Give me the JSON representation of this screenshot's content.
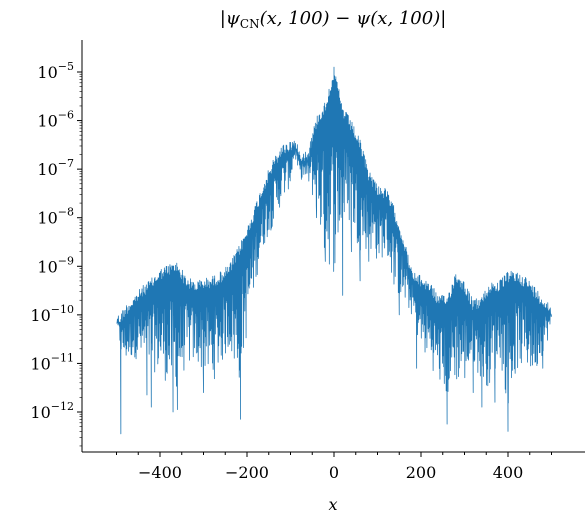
{
  "chart_data": {
    "type": "line",
    "title_parts": {
      "open": "|",
      "psi": "ψ",
      "sub": "CN",
      "args": "(x, 100) − ",
      "psi2": "ψ",
      "args2": "(x, 100)",
      "close": "|"
    },
    "xlabel": "x",
    "ylabel": "",
    "xlim": [
      -520,
      520
    ],
    "ylim_log10": [
      -12.75,
      -4.9
    ],
    "yscale": "log",
    "grid": false,
    "x_ticks": [
      -400,
      -200,
      0,
      200,
      400
    ],
    "x_tick_labels": [
      "−400",
      "−200",
      "0",
      "200",
      "400"
    ],
    "y_ticks_log10": [
      -5,
      -6,
      -7,
      -8,
      -9,
      -10,
      -11,
      -12
    ],
    "y_tick_labels": [
      {
        "base": "10",
        "exp": "−5"
      },
      {
        "base": "10",
        "exp": "−6"
      },
      {
        "base": "10",
        "exp": "−7"
      },
      {
        "base": "10",
        "exp": "−8"
      },
      {
        "base": "10",
        "exp": "−9"
      },
      {
        "base": "10",
        "exp": "−10"
      },
      {
        "base": "10",
        "exp": "−11"
      },
      {
        "base": "10",
        "exp": "−12"
      }
    ],
    "series": [
      {
        "color": "#1f77b4",
        "x": [
          -500,
          -490,
          -480,
          -460,
          -440,
          -420,
          -400,
          -380,
          -360,
          -340,
          -320,
          -300,
          -280,
          -260,
          -240,
          -220,
          -200,
          -180,
          -160,
          -140,
          -120,
          -100,
          -90,
          -80,
          -60,
          -40,
          -20,
          0,
          20,
          40,
          60,
          80,
          100,
          120,
          140,
          160,
          180,
          200,
          220,
          240,
          260,
          280,
          300,
          320,
          340,
          360,
          380,
          400,
          420,
          440,
          460,
          480,
          500
        ],
        "upper_log10": [
          -10.0,
          -9.95,
          -9.8,
          -9.6,
          -9.4,
          -9.25,
          -9.05,
          -8.95,
          -8.9,
          -9.2,
          -9.3,
          -9.25,
          -9.2,
          -9.1,
          -8.95,
          -8.6,
          -8.2,
          -7.7,
          -7.2,
          -6.8,
          -6.5,
          -6.4,
          -6.35,
          -6.6,
          -6.6,
          -5.9,
          -5.6,
          -4.9,
          -5.7,
          -6.0,
          -6.4,
          -7.0,
          -7.3,
          -7.4,
          -7.8,
          -8.4,
          -9.1,
          -9.2,
          -9.3,
          -9.6,
          -9.6,
          -9.1,
          -9.3,
          -9.7,
          -9.6,
          -9.3,
          -9.3,
          -9.1,
          -9.1,
          -9.2,
          -9.4,
          -9.6,
          -9.8
        ],
        "lower_log10": [
          -10.2,
          -11.0,
          -11.2,
          -11.1,
          -11.3,
          -11.5,
          -11.6,
          -11.9,
          -12.0,
          -11.4,
          -11.3,
          -11.5,
          -11.8,
          -11.4,
          -11.0,
          -12.0,
          -10.8,
          -9.6,
          -8.8,
          -8.4,
          -7.9,
          -7.5,
          -6.8,
          -7.3,
          -7.4,
          -8.2,
          -9.5,
          -9.9,
          -8.6,
          -8.5,
          -9.2,
          -8.9,
          -9.2,
          -9.0,
          -9.8,
          -10.0,
          -10.2,
          -11.0,
          -11.3,
          -11.7,
          -12.1,
          -11.8,
          -11.8,
          -11.2,
          -11.7,
          -11.9,
          -11.1,
          -12.4,
          -11.5,
          -11.4,
          -11.6,
          -11.0,
          -10.4
        ],
        "spikes": [
          {
            "x": -490,
            "log10": -12.45
          },
          {
            "x": -430,
            "log10": -11.65
          },
          {
            "x": -420,
            "log10": -11.9
          },
          {
            "x": -370,
            "log10": -12.0
          },
          {
            "x": -360,
            "log10": -11.95
          },
          {
            "x": -300,
            "log10": -11.6
          },
          {
            "x": -215,
            "log10": -12.15
          },
          {
            "x": -40,
            "log10": -8.0
          },
          {
            "x": -20,
            "log10": -8.9
          },
          {
            "x": 20,
            "log10": -9.6
          },
          {
            "x": 40,
            "log10": -8.7
          },
          {
            "x": 60,
            "log10": -9.3
          },
          {
            "x": 80,
            "log10": -8.9
          },
          {
            "x": 150,
            "log10": -10.0
          },
          {
            "x": 190,
            "log10": -11.1
          },
          {
            "x": 260,
            "log10": -12.25
          },
          {
            "x": 320,
            "log10": -11.6
          },
          {
            "x": 340,
            "log10": -11.9
          },
          {
            "x": 370,
            "log10": -11.8
          },
          {
            "x": 400,
            "log10": -12.4
          },
          {
            "x": 480,
            "log10": -11.1
          }
        ]
      }
    ]
  }
}
